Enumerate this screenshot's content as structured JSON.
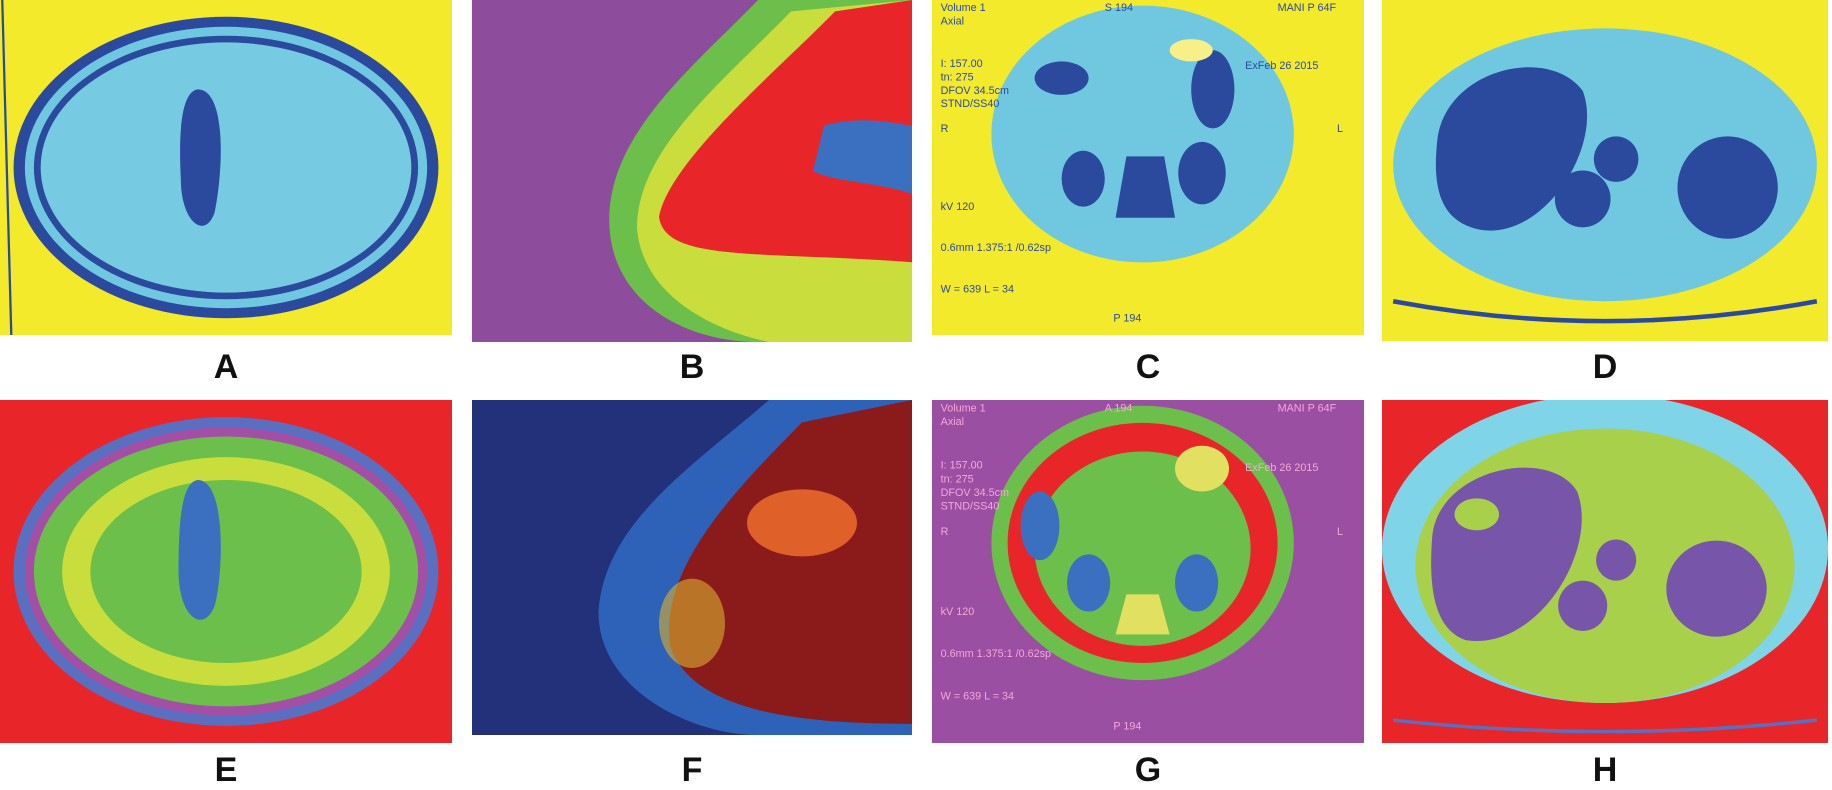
{
  "panels": [
    {
      "label": "A"
    },
    {
      "label": "B"
    },
    {
      "label": "C",
      "overlay_texts": [
        "Volume 1",
        "Axial",
        "S 194",
        "MANI P 64F",
        "I: 157.00",
        "tn: 275",
        "DFOV 34.5cm",
        "STND/SS40",
        "ExFeb 26 2015",
        "R",
        "L",
        "kV 120",
        "0.6mm 1.375:1 /0.62sp",
        "W = 639 L = 34",
        "P 194"
      ]
    },
    {
      "label": "D"
    },
    {
      "label": "E"
    },
    {
      "label": "F"
    },
    {
      "label": "G",
      "overlay_texts": [
        "Volume 1",
        "Axial",
        "A 194",
        "MANI P 64F",
        "I: 157.00",
        "tn: 275",
        "DFOV 34.5cm",
        "STND/SS40",
        "ExFeb 26 2015",
        "R",
        "L",
        "kV 120",
        "0.6mm 1.375:1 /0.62sp",
        "W = 639 L = 34",
        "P 194"
      ]
    },
    {
      "label": "H"
    }
  ]
}
